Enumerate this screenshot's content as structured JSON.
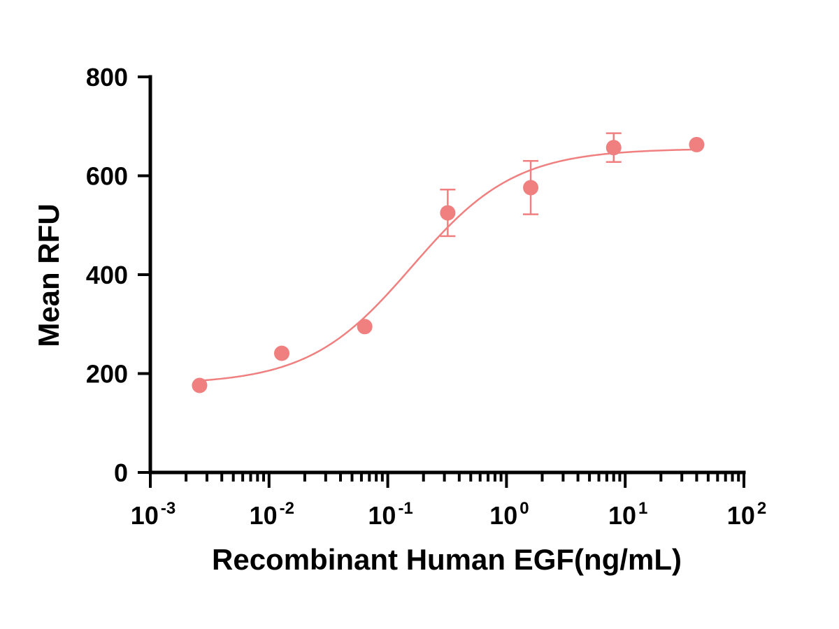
{
  "chart_data": {
    "type": "scatter",
    "xscale": "log",
    "xlabel": "Recombinant Human EGF(ng/mL)",
    "ylabel": "Mean RFU",
    "xlim": [
      0.001,
      100
    ],
    "ylim": [
      0,
      800
    ],
    "yticks": [
      0,
      200,
      400,
      600,
      800
    ],
    "xticks": [
      {
        "base": "10",
        "exp": "-3",
        "value": 0.001
      },
      {
        "base": "10",
        "exp": "-2",
        "value": 0.01
      },
      {
        "base": "10",
        "exp": "-1",
        "value": 0.1
      },
      {
        "base": "10",
        "exp": "0",
        "value": 1
      },
      {
        "base": "10",
        "exp": "1",
        "value": 10
      },
      {
        "base": "10",
        "exp": "2",
        "value": 100
      }
    ],
    "grid": false,
    "color": "#F08080",
    "series": [
      {
        "points": [
          {
            "x": 0.0026,
            "y": 176
          },
          {
            "x": 0.0128,
            "y": 241
          },
          {
            "x": 0.064,
            "y": 295
          },
          {
            "x": 0.32,
            "y": 525,
            "err": 47
          },
          {
            "x": 1.6,
            "y": 576,
            "err": 54
          },
          {
            "x": 8.0,
            "y": 657,
            "err": 29
          },
          {
            "x": 40.0,
            "y": 663
          }
        ],
        "fit": {
          "model": "4PL",
          "bottom": 178,
          "top": 655,
          "ec50": 0.16,
          "hill": 1.0,
          "x_range": [
            0.0026,
            40.0
          ]
        }
      }
    ]
  }
}
